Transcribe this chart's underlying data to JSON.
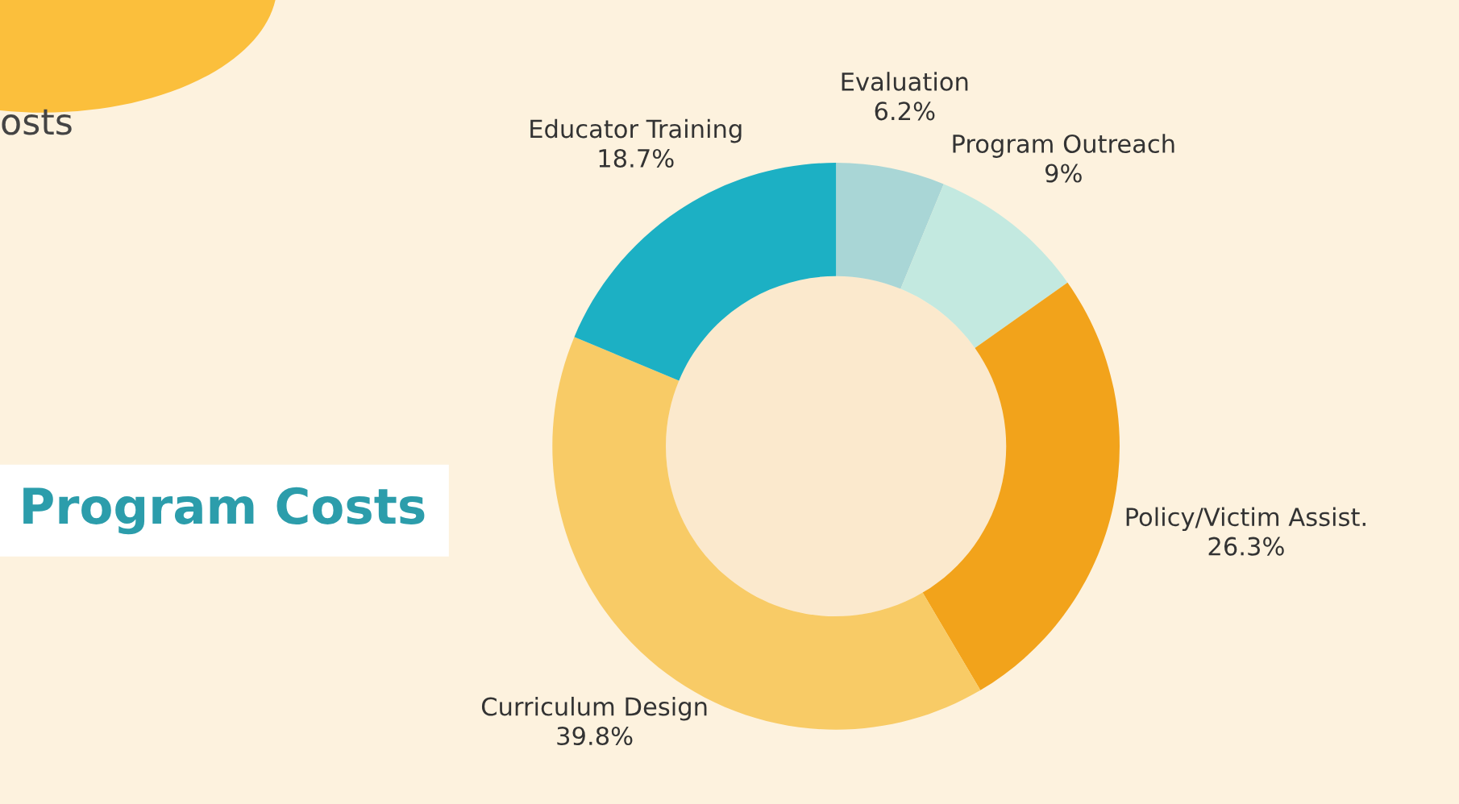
{
  "chart_data": {
    "type": "donut",
    "title": "Program Costs",
    "categories": [
      "Evaluation",
      "Program Outreach",
      "Policy/Victim Assist.",
      "Curriculum Design",
      "Educator Training"
    ],
    "values": [
      6.2,
      9,
      26.3,
      39.8,
      18.7
    ],
    "value_labels": [
      "6.2%",
      "9%",
      "26.3%",
      "39.8%",
      "18.7%"
    ],
    "colors": [
      "#a9d6d6",
      "#c3e9e0",
      "#f2a31b",
      "#f8cb66",
      "#1cb0c4"
    ],
    "annotations": [
      "osts"
    ],
    "legend": false
  }
}
